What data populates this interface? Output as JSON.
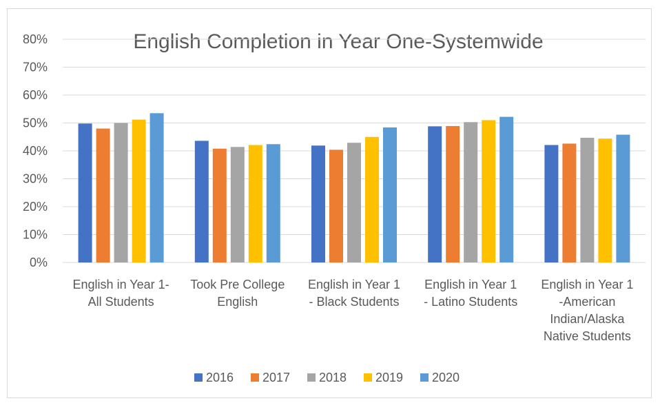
{
  "chart_data": {
    "type": "bar",
    "title": "English Completion in Year One-Systemwide",
    "xlabel": "",
    "ylabel": "",
    "ylim": [
      0,
      0.8
    ],
    "y_ticks": [
      "0%",
      "10%",
      "20%",
      "30%",
      "40%",
      "50%",
      "60%",
      "70%",
      "80%"
    ],
    "y_tick_values": [
      0,
      0.1,
      0.2,
      0.3,
      0.4,
      0.5,
      0.6,
      0.7,
      0.8
    ],
    "grid": true,
    "legend_position": "bottom",
    "categories": [
      [
        "English in Year 1-",
        "All Students"
      ],
      [
        "Took Pre College",
        "English"
      ],
      [
        "English in Year 1",
        "- Black Students"
      ],
      [
        "English in Year 1",
        "- Latino Students"
      ],
      [
        "English in Year 1",
        "-American",
        "Indian/Alaska",
        "Native Students"
      ]
    ],
    "series": [
      {
        "name": "2016",
        "color": "#4472C4",
        "values": [
          0.498,
          0.436,
          0.419,
          0.488,
          0.421
        ]
      },
      {
        "name": "2017",
        "color": "#ED7D31",
        "values": [
          0.48,
          0.408,
          0.404,
          0.489,
          0.426
        ]
      },
      {
        "name": "2018",
        "color": "#A5A5A5",
        "values": [
          0.5,
          0.414,
          0.429,
          0.503,
          0.447
        ]
      },
      {
        "name": "2019",
        "color": "#FFC000",
        "values": [
          0.512,
          0.421,
          0.45,
          0.51,
          0.444
        ]
      },
      {
        "name": "2020",
        "color": "#5B9BD5",
        "values": [
          0.535,
          0.424,
          0.484,
          0.522,
          0.458
        ]
      }
    ]
  }
}
